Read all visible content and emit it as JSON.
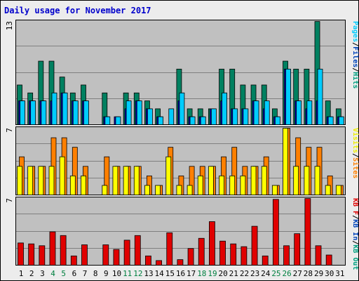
{
  "chart_data": {
    "type": "bar",
    "title": "Daily usage for November 2017",
    "days": [
      "1",
      "2",
      "3",
      "4",
      "5",
      "6",
      "7",
      "8",
      "9",
      "10",
      "11",
      "12",
      "13",
      "14",
      "15",
      "16",
      "17",
      "18",
      "19",
      "20",
      "21",
      "22",
      "23",
      "24",
      "25",
      "26",
      "27",
      "28",
      "29",
      "30",
      "31"
    ],
    "weekend_days": [
      "4",
      "5",
      "11",
      "12",
      "18",
      "19",
      "25",
      "26"
    ],
    "panels": [
      {
        "id": "hits",
        "max_label": "13",
        "ymax": 13,
        "legend": [
          "Pages",
          "/",
          "Files",
          "/",
          "Hits"
        ],
        "legend_colors": [
          "#00ccff",
          "#000000",
          "#0044bb",
          "#000000",
          "#00a080"
        ],
        "series": [
          {
            "name": "Hits",
            "color": "#008060",
            "values": [
              5,
              4,
              8,
              8,
              6,
              4,
              5,
              0,
              4,
              0,
              4,
              4,
              3,
              2,
              0,
              7,
              2,
              2,
              2,
              7,
              7,
              5,
              5,
              5,
              2,
              8,
              7,
              7,
              13,
              3,
              2
            ]
          },
          {
            "name": "Files",
            "color": "#0000c0",
            "values": [
              3,
              3,
              3,
              3,
              4,
              3,
              3,
              0,
              1,
              1,
              2,
              3,
              2,
              1,
              0,
              3,
              1,
              1,
              2,
              3,
              2,
              2,
              3,
              2,
              1,
              7,
              3,
              2,
              3,
              1,
              1
            ]
          },
          {
            "name": "Pages",
            "color": "#00ccff",
            "values": [
              3,
              3,
              3,
              4,
              4,
              3,
              3,
              0,
              1,
              1,
              3,
              3,
              2,
              1,
              2,
              4,
              1,
              1,
              2,
              4,
              2,
              2,
              3,
              3,
              1,
              7,
              3,
              3,
              7,
              1,
              1
            ]
          }
        ]
      },
      {
        "id": "visits",
        "max_label": "7",
        "ymax": 7,
        "legend": [
          "Visits",
          "/",
          "Sites"
        ],
        "legend_colors": [
          "#eeee00",
          "#000000",
          "#ff8000"
        ],
        "series": [
          {
            "name": "Sites",
            "color": "#ff8000",
            "values": [
              4,
              3,
              3,
              6,
              6,
              5,
              3,
              0,
              4,
              3,
              3,
              3,
              2,
              1,
              5,
              2,
              3,
              3,
              3,
              4,
              5,
              3,
              3,
              4,
              1,
              7,
              6,
              5,
              5,
              2,
              1
            ]
          },
          {
            "name": "Visits",
            "color": "#ffff00",
            "values": [
              3,
              3,
              3,
              3,
              4,
              2,
              2,
              0,
              1,
              3,
              3,
              3,
              1,
              1,
              4,
              1,
              1,
              2,
              3,
              2,
              2,
              2,
              3,
              3,
              1,
              7,
              3,
              3,
              3,
              1,
              1
            ]
          }
        ]
      },
      {
        "id": "kbytes",
        "max_label": "7",
        "ymax": 7.2,
        "legend": [
          "KB F",
          "/",
          "KB In",
          "/",
          "KB Out"
        ],
        "legend_colors": [
          "#e00000",
          "#000000",
          "#0044bb",
          "#000000",
          "#00a080"
        ],
        "series": [
          {
            "name": "KB F",
            "color": "#e00000",
            "values": [
              2.4,
              2.3,
              2.1,
              3.6,
              3.2,
              1,
              2.2,
              0,
              2.2,
              1.7,
              2.7,
              3.2,
              1,
              0.5,
              3.5,
              0.6,
              1.8,
              2.9,
              4.7,
              2.6,
              2.3,
              2,
              4.2,
              1,
              7.1,
              2.1,
              3.4,
              7.2,
              2.1,
              1.1,
              0
            ]
          }
        ]
      }
    ]
  }
}
